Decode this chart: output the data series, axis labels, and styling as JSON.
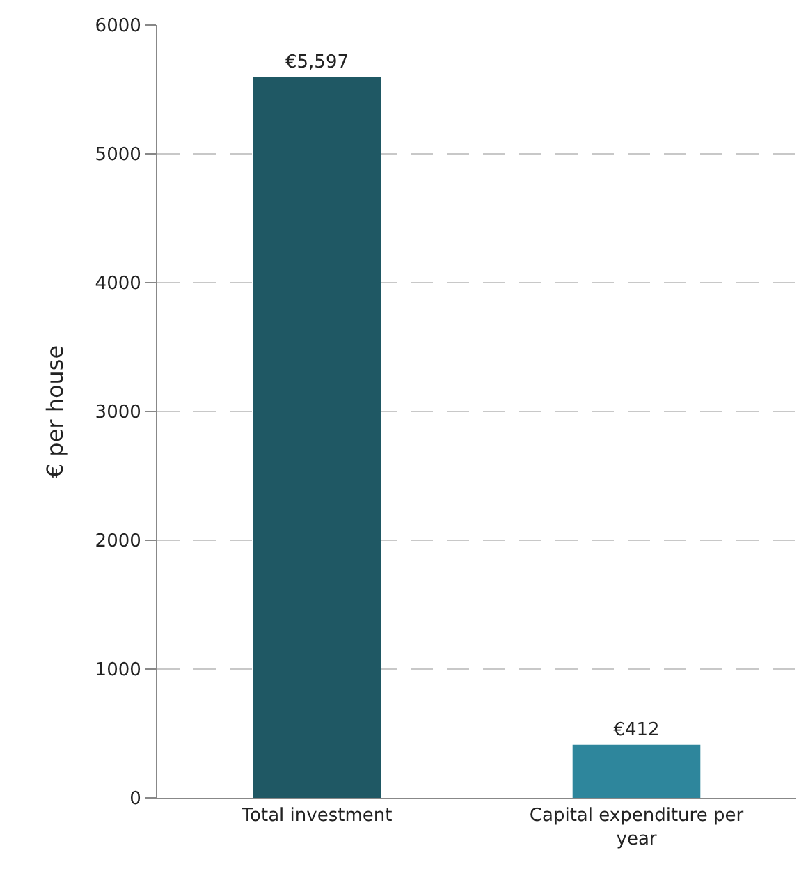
{
  "chart_data": {
    "type": "bar",
    "ylabel": "€ per house",
    "categories": [
      "Total investment",
      "Capital expenditure per year"
    ],
    "values": [
      5597,
      412
    ],
    "colors": [
      "#1f5864",
      "#2e869c"
    ],
    "value_labels": [
      "€5,597",
      "€412"
    ],
    "ylim": [
      0,
      6000
    ],
    "yticks": [
      0,
      1000,
      2000,
      3000,
      4000,
      5000,
      6000
    ],
    "grid": "y",
    "legend": false
  }
}
